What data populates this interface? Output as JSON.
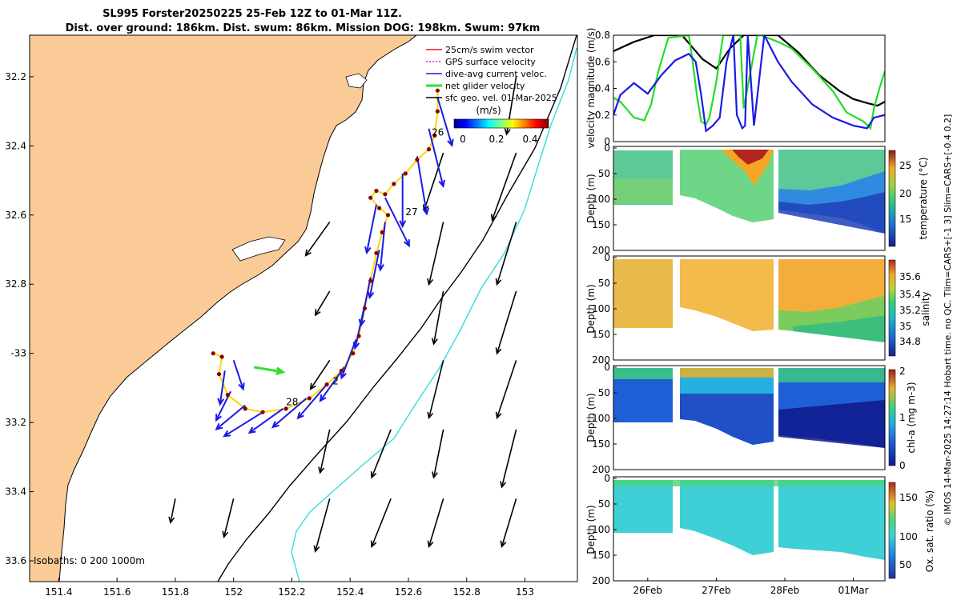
{
  "title": {
    "line1": "SL995 Forster20250225 25-Feb 12Z to 01-Mar 11Z.",
    "line2": "Dist. over ground: 186km. Dist. swum: 86km. Mission DOG: 198km. Swum: 97km"
  },
  "side_note": "© IMOS 14-Mar-2025 14:27:14 Hobart time. no QC. Tlim=CARS+[-1 3] Slim=CARS+[-0.4 0.2]",
  "colors": {
    "land": "#FBCB97",
    "swim_vector": "#E41A1C",
    "gps_velocity": "#CC33CC",
    "current": "#1A1AE6",
    "net_velocity": "#33DD33",
    "isobath_200": "#000000",
    "isobath_1000": "#33DDDD",
    "track_dots": "#8B0000"
  },
  "chart_data": [
    {
      "type": "map",
      "xlim": [
        151.3,
        153.18
      ],
      "ylim": [
        -33.66,
        -32.08
      ],
      "x_ticks": [
        151.4,
        151.6,
        151.8,
        152,
        152.2,
        152.4,
        152.6,
        152.8,
        153
      ],
      "x_tick_labels": [
        "151.4",
        "151.6",
        "151.8",
        "152",
        "152.2",
        "152.4",
        "152.6",
        "152.8",
        "153"
      ],
      "y_ticks": [
        -32.2,
        -32.4,
        -32.6,
        -32.8,
        -33,
        -33.2,
        -33.4,
        -33.6
      ],
      "y_tick_labels": [
        "32.2",
        "32.4",
        "32.6",
        "32.8",
        "-33",
        "33.2",
        "33.4",
        "33.6"
      ],
      "legend": [
        "25cm/s swim vector",
        "GPS surface velocity",
        "dive-avg current veloc.",
        "net glider velocity",
        "sfc geo. vel. 01-Mar-2025"
      ],
      "colorbar": {
        "label": "(m/s)",
        "min": 0,
        "max": 0.5,
        "ticks": [
          "0",
          "0.2",
          "0.4"
        ]
      },
      "isobaths_text": "Isobaths: 0   200  1000m",
      "day_labels": [
        {
          "text": "26",
          "lon": 152.68,
          "lat": -32.37
        },
        {
          "text": "27",
          "lon": 152.59,
          "lat": -32.6
        },
        {
          "text": "2",
          "lon": 152.34,
          "lat": -33.09
        },
        {
          "text": "28",
          "lon": 152.18,
          "lat": -33.15
        }
      ],
      "track": [
        [
          152.7,
          -32.24
        ],
        [
          152.7,
          -32.3
        ],
        [
          152.69,
          -32.37
        ],
        [
          152.67,
          -32.41
        ],
        [
          152.63,
          -32.44
        ],
        [
          152.59,
          -32.48
        ],
        [
          152.55,
          -32.51
        ],
        [
          152.52,
          -32.54
        ],
        [
          152.49,
          -32.53
        ],
        [
          152.47,
          -32.55
        ],
        [
          152.5,
          -32.58
        ],
        [
          152.53,
          -32.6
        ],
        [
          152.51,
          -32.65
        ],
        [
          152.49,
          -32.71
        ],
        [
          152.47,
          -32.79
        ],
        [
          152.45,
          -32.87
        ],
        [
          152.43,
          -32.95
        ],
        [
          152.41,
          -33.0
        ],
        [
          152.37,
          -33.05
        ],
        [
          152.32,
          -33.09
        ],
        [
          152.26,
          -33.13
        ],
        [
          152.18,
          -33.16
        ],
        [
          152.1,
          -33.17
        ],
        [
          152.04,
          -33.16
        ],
        [
          151.98,
          -33.12
        ],
        [
          151.95,
          -33.06
        ],
        [
          151.96,
          -33.01
        ],
        [
          151.93,
          -33.0
        ]
      ],
      "current_vectors": [
        [
          152.7,
          -32.26,
          0.03,
          -0.1
        ],
        [
          152.67,
          -32.35,
          0.03,
          -0.12
        ],
        [
          152.63,
          -32.43,
          0.02,
          -0.12
        ],
        [
          152.58,
          -32.48,
          0.0,
          -0.11
        ],
        [
          152.52,
          -32.55,
          0.05,
          -0.1
        ],
        [
          152.49,
          -32.57,
          -0.02,
          -0.1
        ],
        [
          152.52,
          -32.62,
          -0.01,
          -0.1
        ],
        [
          152.5,
          -32.7,
          -0.02,
          -0.1
        ],
        [
          152.47,
          -32.78,
          -0.02,
          -0.1
        ],
        [
          152.45,
          -32.86,
          -0.02,
          -0.09
        ],
        [
          152.42,
          -32.96,
          -0.03,
          -0.08
        ],
        [
          152.38,
          -33.04,
          -0.05,
          -0.07
        ],
        [
          152.32,
          -33.09,
          -0.06,
          -0.07
        ],
        [
          152.25,
          -33.13,
          -0.07,
          -0.06
        ],
        [
          152.17,
          -33.16,
          -0.07,
          -0.05
        ],
        [
          152.1,
          -33.17,
          -0.08,
          -0.05
        ],
        [
          152.04,
          -33.15,
          -0.06,
          -0.05
        ],
        [
          151.99,
          -33.11,
          -0.03,
          -0.06
        ],
        [
          151.97,
          -33.05,
          -0.01,
          -0.07
        ],
        [
          152.0,
          -33.02,
          0.02,
          -0.06
        ]
      ],
      "geo_vectors": [
        [
          152.97,
          -32.2,
          -0.02,
          -0.12
        ],
        [
          152.72,
          -32.42,
          -0.04,
          -0.12
        ],
        [
          152.97,
          -32.42,
          -0.05,
          -0.14
        ],
        [
          152.33,
          -32.62,
          -0.05,
          -0.07
        ],
        [
          152.72,
          -32.62,
          -0.03,
          -0.13
        ],
        [
          152.97,
          -32.62,
          -0.04,
          -0.13
        ],
        [
          152.33,
          -32.82,
          -0.03,
          -0.05
        ],
        [
          152.72,
          -32.82,
          -0.02,
          -0.11
        ],
        [
          152.97,
          -32.82,
          -0.04,
          -0.13
        ],
        [
          152.33,
          -33.02,
          -0.04,
          -0.06
        ],
        [
          152.72,
          -33.02,
          -0.03,
          -0.12
        ],
        [
          152.97,
          -33.02,
          -0.04,
          -0.12
        ],
        [
          152.33,
          -33.22,
          -0.02,
          -0.09
        ],
        [
          152.54,
          -33.22,
          -0.04,
          -0.1
        ],
        [
          152.72,
          -33.22,
          -0.02,
          -0.1
        ],
        [
          152.97,
          -33.22,
          -0.03,
          -0.12
        ],
        [
          152.33,
          -33.42,
          -0.03,
          -0.11
        ],
        [
          152.54,
          -33.42,
          -0.04,
          -0.1
        ],
        [
          152.72,
          -33.42,
          -0.03,
          -0.1
        ],
        [
          152.97,
          -33.42,
          -0.03,
          -0.1
        ],
        [
          151.8,
          -33.42,
          -0.01,
          -0.05
        ],
        [
          152.0,
          -33.42,
          -0.02,
          -0.08
        ]
      ],
      "net_velocity": {
        "lon": 152.07,
        "lat": -33.04,
        "u": 0.06,
        "v": -0.01
      }
    },
    {
      "type": "line",
      "ylabel": "velocity magnitude (m/s)",
      "ylim": [
        0,
        0.8
      ],
      "y_ticks": [
        "0",
        "0.2",
        "0.4",
        "0.6",
        "0.8"
      ],
      "x_range_days": [
        25.5,
        29.46
      ],
      "series": [
        {
          "name": "black",
          "x": [
            25.5,
            25.8,
            26.1,
            26.5,
            26.8,
            27.0,
            27.2,
            27.4,
            27.6,
            27.9,
            28.2,
            28.5,
            28.8,
            29.0,
            29.2,
            29.35,
            29.46
          ],
          "values": [
            0.68,
            0.75,
            0.8,
            0.8,
            0.62,
            0.55,
            0.7,
            0.8,
            0.8,
            0.8,
            0.67,
            0.5,
            0.38,
            0.32,
            0.29,
            0.27,
            0.3
          ]
        },
        {
          "name": "green",
          "x": [
            25.5,
            25.6,
            25.8,
            25.95,
            26.05,
            26.15,
            26.3,
            26.6,
            26.65,
            26.72,
            26.78,
            26.85,
            26.9,
            27.0,
            27.1,
            27.35,
            27.4,
            27.6,
            27.65,
            27.9,
            28.1,
            28.4,
            28.7,
            28.9,
            29.15,
            29.25,
            29.3,
            29.38,
            29.46
          ],
          "values": [
            0.33,
            0.3,
            0.18,
            0.16,
            0.28,
            0.52,
            0.78,
            0.8,
            0.62,
            0.34,
            0.15,
            0.13,
            0.18,
            0.45,
            0.8,
            0.8,
            0.25,
            0.8,
            0.8,
            0.75,
            0.7,
            0.55,
            0.38,
            0.22,
            0.15,
            0.1,
            0.25,
            0.4,
            0.53
          ]
        },
        {
          "name": "blue",
          "x": [
            25.5,
            25.6,
            25.8,
            26.0,
            26.2,
            26.4,
            26.6,
            26.7,
            26.78,
            26.85,
            26.95,
            27.05,
            27.15,
            27.25,
            27.3,
            27.38,
            27.42,
            27.46,
            27.55,
            27.7,
            27.9,
            28.1,
            28.4,
            28.7,
            29.0,
            29.2,
            29.3,
            29.46
          ],
          "values": [
            0.2,
            0.35,
            0.44,
            0.36,
            0.5,
            0.61,
            0.66,
            0.6,
            0.35,
            0.08,
            0.12,
            0.18,
            0.6,
            0.8,
            0.2,
            0.1,
            0.12,
            0.8,
            0.12,
            0.8,
            0.6,
            0.45,
            0.28,
            0.18,
            0.12,
            0.1,
            0.18,
            0.2
          ]
        }
      ]
    },
    {
      "type": "heatmap",
      "ylabel": "Depth (m)",
      "ylim": [
        0,
        200
      ],
      "y_ticks": [
        "0",
        "50",
        "100",
        "150",
        "200"
      ],
      "colorbar_label": "temperature (°C)",
      "colorbar_ticks": [
        "15",
        "20",
        "25"
      ],
      "clim": [
        12.5,
        28
      ]
    },
    {
      "type": "heatmap",
      "ylabel": "Depth (m)",
      "ylim": [
        0,
        200
      ],
      "y_ticks": [
        "0",
        "50",
        "100",
        "150",
        "200"
      ],
      "colorbar_label": "salinity",
      "colorbar_ticks": [
        "34.8",
        "35",
        "35.2",
        "35.4",
        "35.6"
      ],
      "clim": [
        34.7,
        35.7
      ]
    },
    {
      "type": "heatmap",
      "ylabel": "Depth (m)",
      "ylim": [
        0,
        200
      ],
      "y_ticks": [
        "0",
        "50",
        "100",
        "150",
        "200"
      ],
      "colorbar_label": "chl-a (mg m-3)",
      "colorbar_ticks": [
        "0",
        "1",
        "2"
      ],
      "clim": [
        0,
        2
      ]
    },
    {
      "type": "heatmap",
      "ylabel": "Depth (m)",
      "ylim": [
        0,
        200
      ],
      "y_ticks": [
        "0",
        "50",
        "100",
        "150",
        "200"
      ],
      "colorbar_label": "Ox. sat. ratio (%)",
      "colorbar_ticks": [
        "50",
        "100",
        "150"
      ],
      "clim": [
        20,
        175
      ],
      "x_tick_labels": [
        "26Feb",
        "27Feb",
        "28Feb",
        "01Mar"
      ],
      "x_tick_days": [
        26.0,
        27.0,
        28.0,
        29.0
      ]
    }
  ]
}
